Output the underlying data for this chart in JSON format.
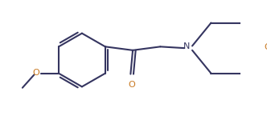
{
  "background_color": "#ffffff",
  "bond_color": "#353560",
  "atom_label_color_N": "#353560",
  "atom_label_color_O": "#c87820",
  "line_width": 1.5,
  "figsize": [
    3.32,
    1.5
  ],
  "dpi": 100,
  "xlim": [
    0,
    332
  ],
  "ylim": [
    0,
    150
  ]
}
